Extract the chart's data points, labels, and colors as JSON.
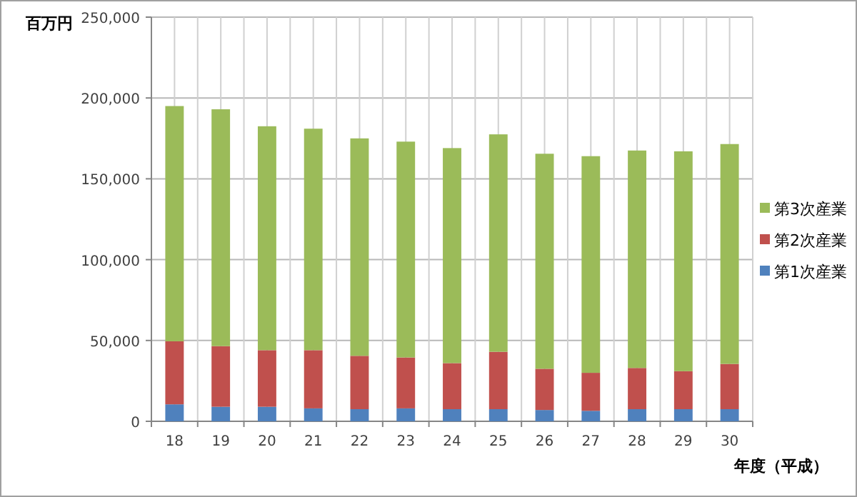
{
  "chart_data": {
    "type": "bar",
    "stacked": true,
    "ylabel": "百万円",
    "xlabel": "年度（平成）",
    "categories": [
      "18",
      "19",
      "20",
      "21",
      "22",
      "23",
      "24",
      "25",
      "26",
      "27",
      "28",
      "29",
      "30"
    ],
    "series": [
      {
        "name": "第1次産業",
        "color": "#4f81bd",
        "values": [
          10500,
          9000,
          9000,
          8000,
          7500,
          8000,
          7500,
          7500,
          7000,
          6500,
          7500,
          7500,
          7500
        ]
      },
      {
        "name": "第2次産業",
        "color": "#c0504d",
        "values": [
          39000,
          37500,
          35000,
          36000,
          33000,
          31500,
          28500,
          35500,
          25500,
          23500,
          25500,
          23500,
          28000
        ]
      },
      {
        "name": "第3次産業",
        "color": "#9bbb59",
        "values": [
          145500,
          146500,
          138500,
          137000,
          134500,
          133500,
          133000,
          134500,
          133000,
          134000,
          134500,
          136000,
          136000
        ]
      }
    ],
    "ylim": [
      0,
      250000
    ],
    "yticks": [
      {
        "value": 0,
        "label": "0"
      },
      {
        "value": 50000,
        "label": "50,000"
      },
      {
        "value": 100000,
        "label": "100,000"
      },
      {
        "value": 150000,
        "label": "150,000"
      },
      {
        "value": 200000,
        "label": "200,000"
      },
      {
        "value": 250000,
        "label": "250,000"
      }
    ],
    "grid": true,
    "legend": "right"
  }
}
